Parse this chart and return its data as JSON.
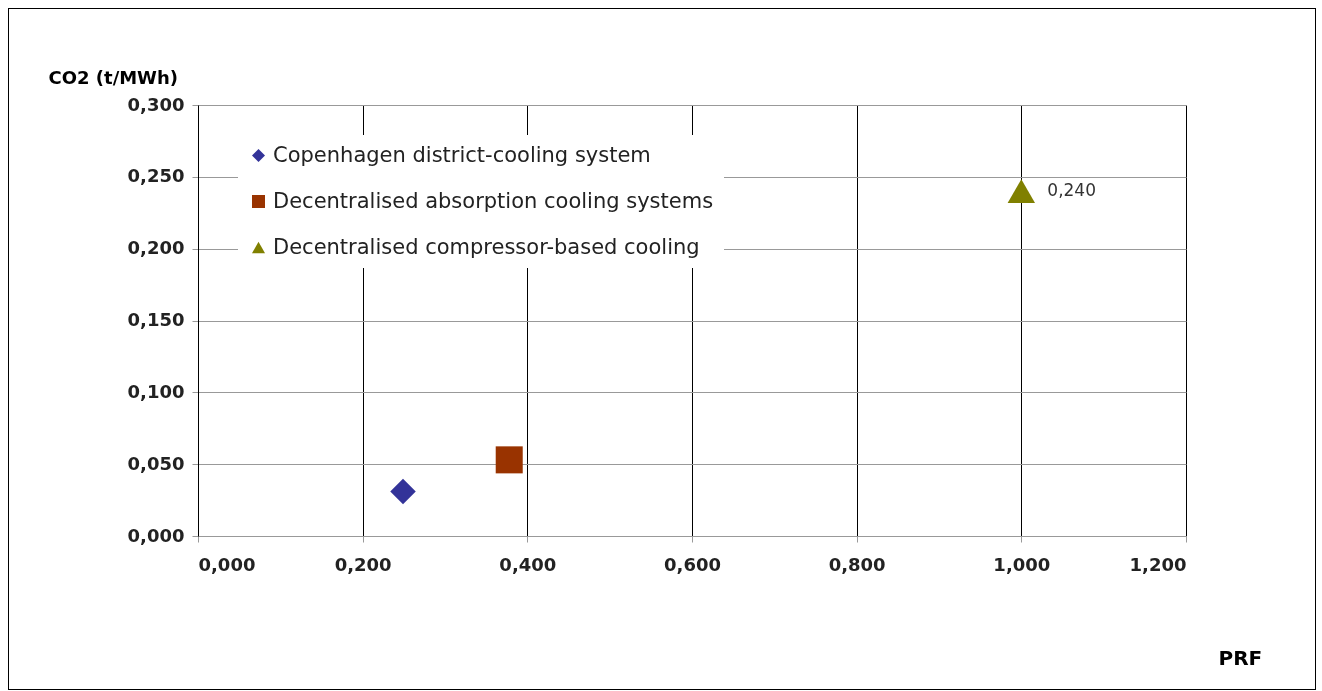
{
  "chart_data": {
    "type": "scatter",
    "xlabel": "PRF",
    "ylabel": "CO2 (t/MWh)",
    "series": [
      {
        "name": "Copenhagen district-cooling system",
        "color": "#333399",
        "marker": "diamond",
        "x": [
          0.249
        ],
        "values": [
          0.031
        ],
        "value_labels": [
          null
        ]
      },
      {
        "name": "Decentralised absorption cooling systems",
        "color": "#993300",
        "marker": "square",
        "x": [
          0.378
        ],
        "values": [
          0.053
        ],
        "value_labels": [
          null
        ]
      },
      {
        "name": "Decentralised compressor-based cooling",
        "color": "#808000",
        "marker": "triangle",
        "x": [
          1.0
        ],
        "values": [
          0.24
        ],
        "value_labels": [
          "0,240"
        ]
      }
    ],
    "xlim": [
      0,
      1.2
    ],
    "xticks": [
      {
        "value": 0,
        "label": "0,000"
      },
      {
        "value": 0.2,
        "label": "0,200"
      },
      {
        "value": 0.4,
        "label": "0,400"
      },
      {
        "value": 0.6,
        "label": "0,600"
      },
      {
        "value": 0.8,
        "label": "0,800"
      },
      {
        "value": 1.0,
        "label": "1,000"
      },
      {
        "value": 1.2,
        "label": "1,200"
      }
    ],
    "ylim": [
      0,
      0.3
    ],
    "yticks": [
      {
        "value": 0,
        "label": "0,000"
      },
      {
        "value": 0.05,
        "label": "0,050"
      },
      {
        "value": 0.1,
        "label": "0,100"
      },
      {
        "value": 0.15,
        "label": "0,150"
      },
      {
        "value": 0.2,
        "label": "0,200"
      },
      {
        "value": 0.25,
        "label": "0,250"
      },
      {
        "value": 0.3,
        "label": "0,300"
      }
    ],
    "grid": true,
    "legend": "top left"
  }
}
